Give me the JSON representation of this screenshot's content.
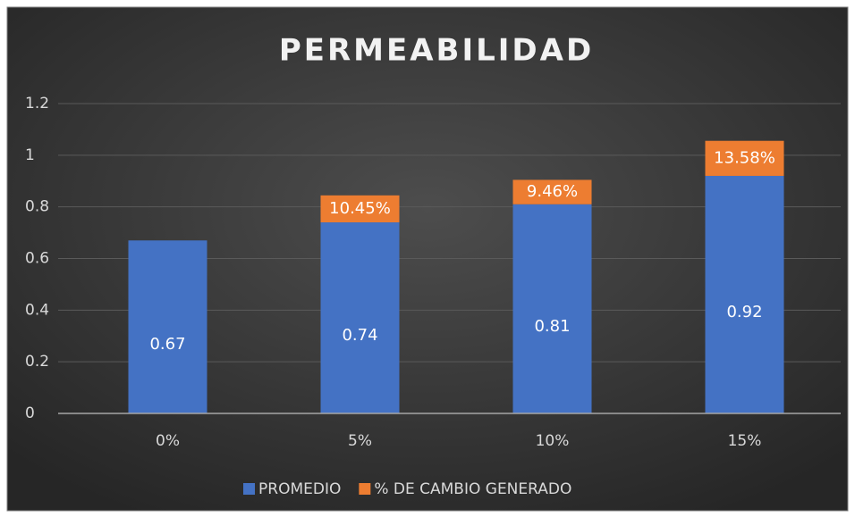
{
  "chart_data": {
    "type": "stacked_bar",
    "title": "PERMEABILIDAD",
    "categories": [
      "0%",
      "5%",
      "10%",
      "15%"
    ],
    "series": [
      {
        "name": "PROMEDIO",
        "color": "#4472c4",
        "values": [
          0.67,
          0.74,
          0.81,
          0.92
        ]
      },
      {
        "name": "% DE CAMBIO GENERADO",
        "color": "#ed7d31",
        "values": [
          null,
          0.1045,
          0.0946,
          0.1358
        ],
        "value_labels": [
          null,
          "10.45%",
          "9.46%",
          "13.58%"
        ]
      }
    ],
    "ylim": [
      0,
      1.2
    ],
    "yticks": [
      0,
      0.2,
      0.4,
      0.6,
      0.8,
      1,
      1.2
    ],
    "grid": true,
    "legend": "bottom"
  }
}
